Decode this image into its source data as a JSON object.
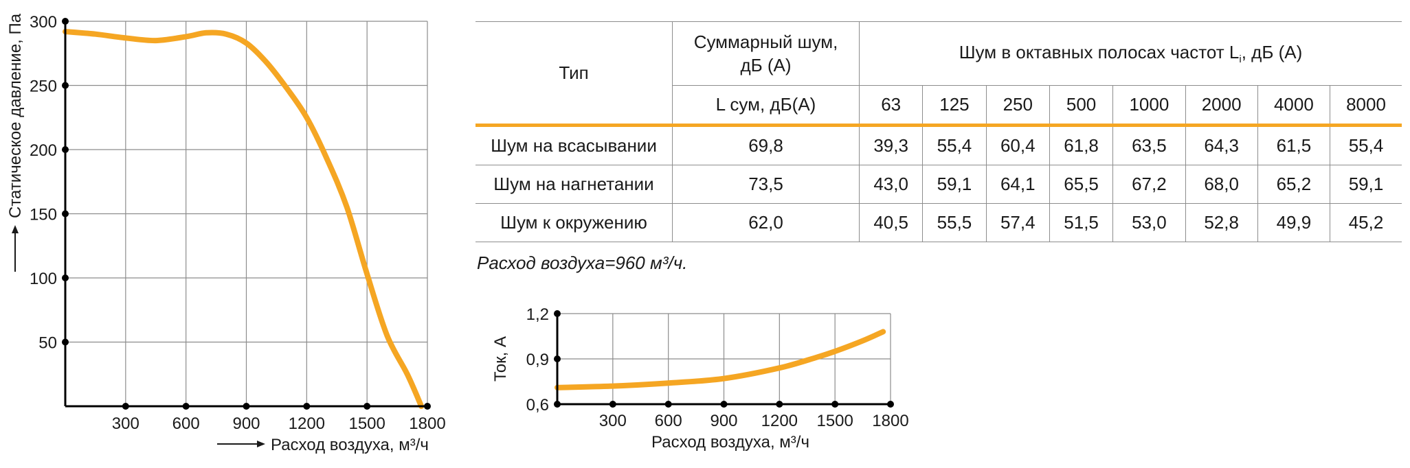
{
  "chart_data": [
    {
      "type": "line",
      "xlabel": "Расход воздуха, м³/ч",
      "ylabel": "Статическое давление, Па",
      "x_ticks": [
        "300",
        "600",
        "900",
        "1200",
        "1500",
        "1800"
      ],
      "y_ticks": [
        "300",
        "250",
        "200",
        "150",
        "100",
        "50"
      ],
      "xlim": [
        0,
        1800
      ],
      "ylim": [
        0,
        300
      ],
      "grid": true,
      "color": "#f5a623",
      "series": [
        {
          "x": [
            0,
            150,
            300,
            450,
            600,
            700,
            800,
            900,
            1000,
            1100,
            1200,
            1300,
            1400,
            1500,
            1600,
            1700,
            1770
          ],
          "y": [
            292,
            290,
            287,
            285,
            288,
            291,
            290,
            283,
            268,
            248,
            225,
            193,
            155,
            103,
            55,
            25,
            0
          ]
        }
      ]
    },
    {
      "type": "line",
      "xlabel": "Расход воздуха, м³/ч",
      "ylabel": "Ток, А",
      "x_ticks": [
        "300",
        "600",
        "900",
        "1200",
        "1500",
        "1800"
      ],
      "y_ticks": [
        "1,2",
        "0,9",
        "0,6"
      ],
      "xlim": [
        0,
        1800
      ],
      "ylim": [
        0.6,
        1.2
      ],
      "grid": true,
      "color": "#f5a623",
      "series": [
        {
          "x": [
            0,
            300,
            600,
            900,
            1200,
            1400,
            1500,
            1650,
            1760
          ],
          "y": [
            0.71,
            0.72,
            0.74,
            0.77,
            0.84,
            0.91,
            0.95,
            1.02,
            1.08
          ]
        }
      ]
    }
  ],
  "noise_table": {
    "header_type": "Тип",
    "header_total": "Суммарный шум, дБ (А)",
    "header_octave": "Шум в октавных полосах частот L",
    "header_octave_sub": "i",
    "header_octave_end": ", дБ (А)",
    "header_total_sub": "L сум, дБ(А)",
    "frequencies": [
      "63",
      "125",
      "250",
      "500",
      "1000",
      "2000",
      "4000",
      "8000"
    ],
    "rows": [
      {
        "type": "Шум на всасывании",
        "total": "69,8",
        "values": [
          "39,3",
          "55,4",
          "60,4",
          "61,8",
          "63,5",
          "64,3",
          "61,5",
          "55,4"
        ]
      },
      {
        "type": "Шум на нагнетании",
        "total": "73,5",
        "values": [
          "43,0",
          "59,1",
          "64,1",
          "65,5",
          "67,2",
          "68,0",
          "65,2",
          "59,1"
        ]
      },
      {
        "type": "Шум к окружению",
        "total": "62,0",
        "values": [
          "40,5",
          "55,5",
          "57,4",
          "51,5",
          "53,0",
          "52,8",
          "49,9",
          "45,2"
        ]
      }
    ]
  },
  "airflow_note": "Расход воздуха=960 м³/ч."
}
